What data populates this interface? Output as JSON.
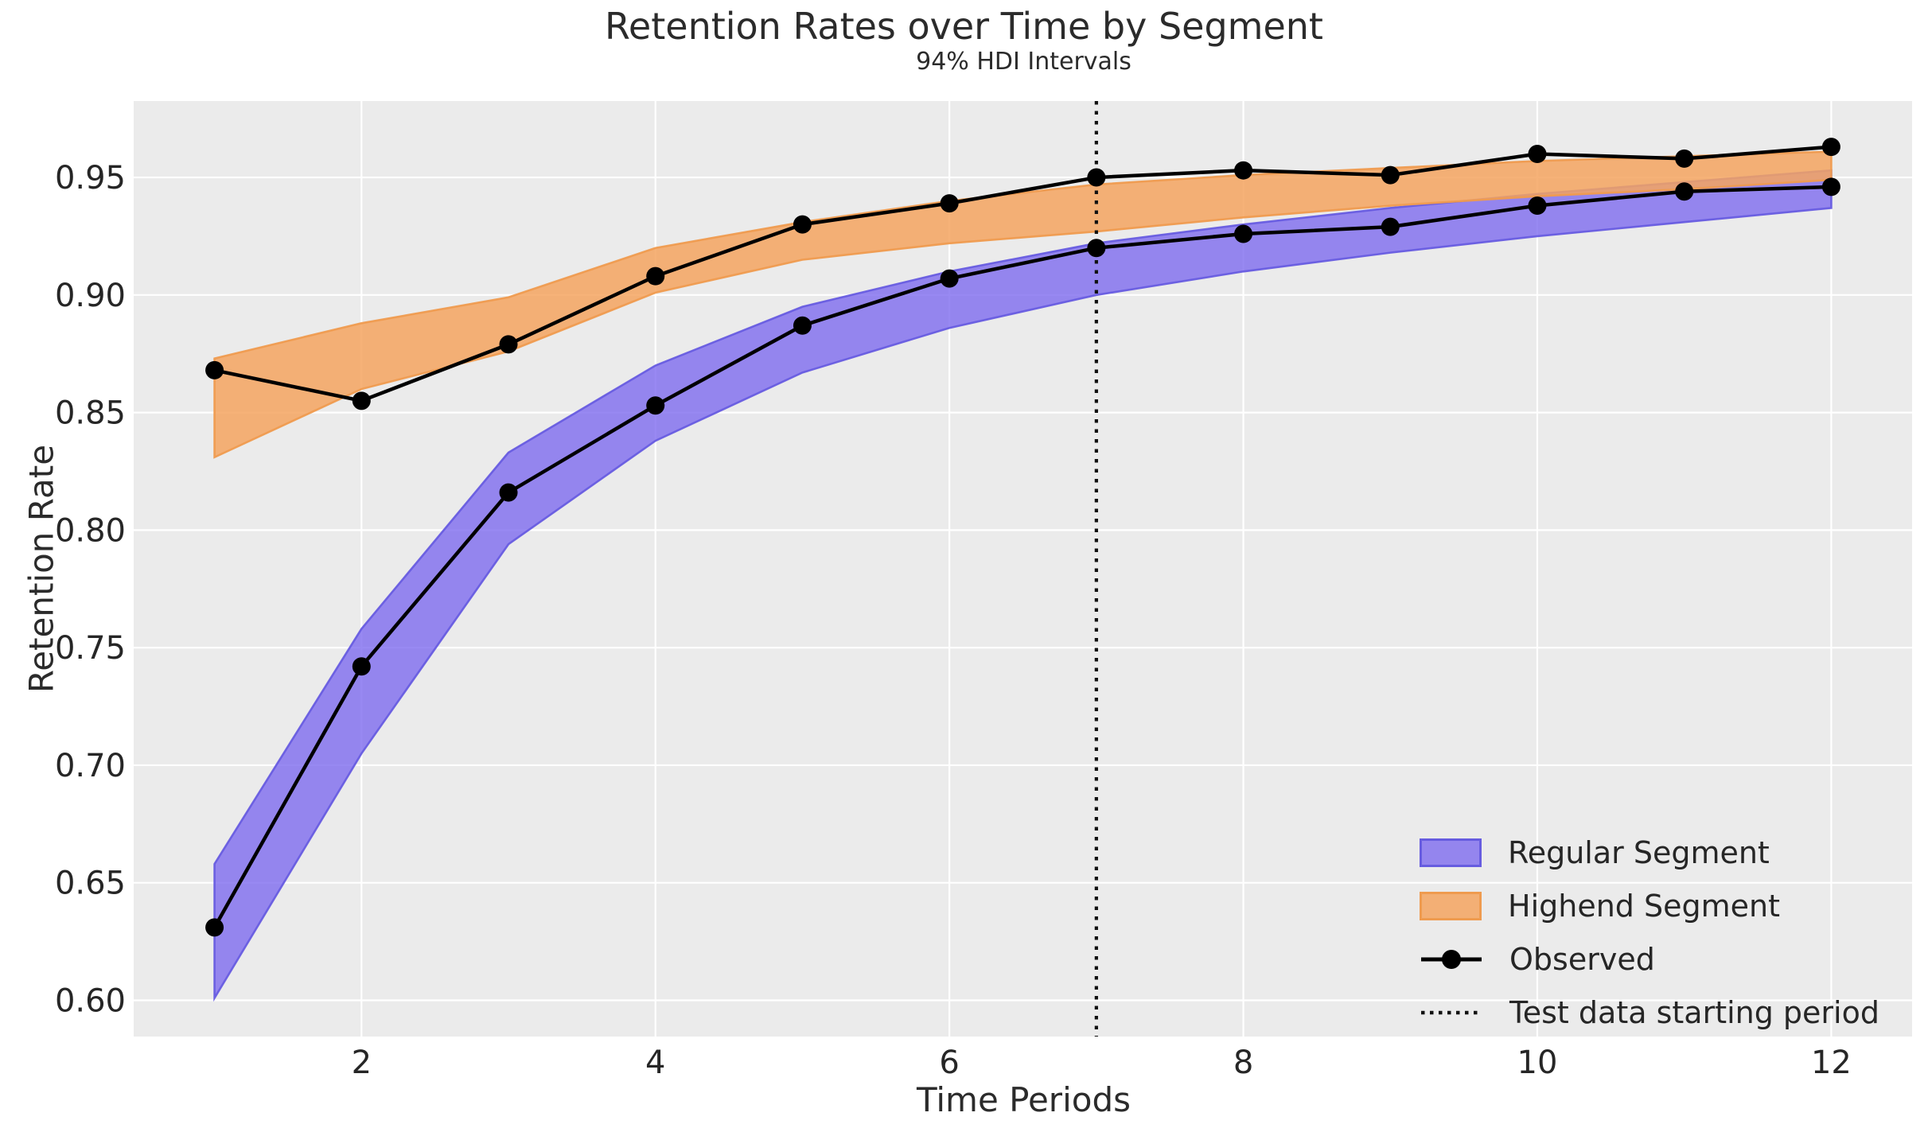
{
  "chart": {
    "title": "Retention Rates over Time by Segment",
    "subtitle": "94% HDI Intervals",
    "xlabel": "Time Periods",
    "ylabel": "Retention Rate"
  },
  "legend": {
    "items": [
      {
        "label": "Regular Segment",
        "type": "patch"
      },
      {
        "label": "Highend Segment",
        "type": "patch"
      },
      {
        "label": "Observed",
        "type": "line-marker"
      },
      {
        "label": "Test data starting period",
        "type": "dotted-line"
      }
    ]
  },
  "chart_data": {
    "type": "line",
    "title": "Retention Rates over Time by Segment",
    "subtitle": "94% HDI Intervals",
    "xlabel": "Time Periods",
    "ylabel": "Retention Rate",
    "x": [
      1,
      2,
      3,
      4,
      5,
      6,
      7,
      8,
      9,
      10,
      11,
      12
    ],
    "x_tick_values": [
      2,
      4,
      6,
      8,
      10,
      12
    ],
    "x_tick_labels": [
      "2",
      "4",
      "6",
      "8",
      "10",
      "12"
    ],
    "y_tick_values": [
      0.6,
      0.65,
      0.7,
      0.75,
      0.8,
      0.85,
      0.9,
      0.95
    ],
    "y_tick_labels": [
      "0.60",
      "0.65",
      "0.70",
      "0.75",
      "0.80",
      "0.85",
      "0.90",
      "0.95"
    ],
    "xlim": [
      0.45,
      12.55
    ],
    "ylim": [
      0.5846,
      0.9825
    ],
    "grid": true,
    "legend_position": "lower right",
    "bands": [
      {
        "name": "Regular Segment",
        "hdi": "94%",
        "fill": "rgba(123,104,238,0.78)",
        "edge": "#675ce0",
        "low": [
          0.601,
          0.705,
          0.794,
          0.838,
          0.867,
          0.886,
          0.9,
          0.91,
          0.918,
          0.925,
          0.931,
          0.937
        ],
        "high": [
          0.658,
          0.758,
          0.833,
          0.87,
          0.895,
          0.91,
          0.922,
          0.93,
          0.937,
          0.943,
          0.948,
          0.953
        ]
      },
      {
        "name": "Highend Segment",
        "hdi": "94%",
        "fill": "rgba(244,164,96,0.85)",
        "edge": "#ef9b4f",
        "low": [
          0.831,
          0.86,
          0.876,
          0.901,
          0.915,
          0.922,
          0.927,
          0.933,
          0.938,
          0.942,
          0.945,
          0.949
        ],
        "high": [
          0.873,
          0.888,
          0.899,
          0.92,
          0.931,
          0.94,
          0.947,
          0.951,
          0.954,
          0.957,
          0.959,
          0.961
        ]
      }
    ],
    "observed_series": [
      {
        "name": "Observed (Regular Segment)",
        "color": "#000000",
        "values": [
          0.631,
          0.742,
          0.816,
          0.853,
          0.887,
          0.907,
          0.92,
          0.926,
          0.929,
          0.938,
          0.944,
          0.946
        ]
      },
      {
        "name": "Observed (Highend Segment)",
        "color": "#000000",
        "values": [
          0.868,
          0.855,
          0.879,
          0.908,
          0.93,
          0.939,
          0.95,
          0.953,
          0.951,
          0.96,
          0.958,
          0.963
        ]
      }
    ],
    "vline": {
      "x": 7,
      "label": "Test data starting period",
      "style": "dotted",
      "color": "#111111"
    },
    "colors": {
      "axes_background": "#ebebeb",
      "grid": "#ffffff",
      "text": "#262626",
      "observed": "#000000",
      "regular_fill": "rgba(123,104,238,0.78)",
      "regular_edge": "#675ce0",
      "highend_fill": "rgba(244,164,96,0.85)",
      "highend_edge": "#ef9b4f"
    }
  }
}
